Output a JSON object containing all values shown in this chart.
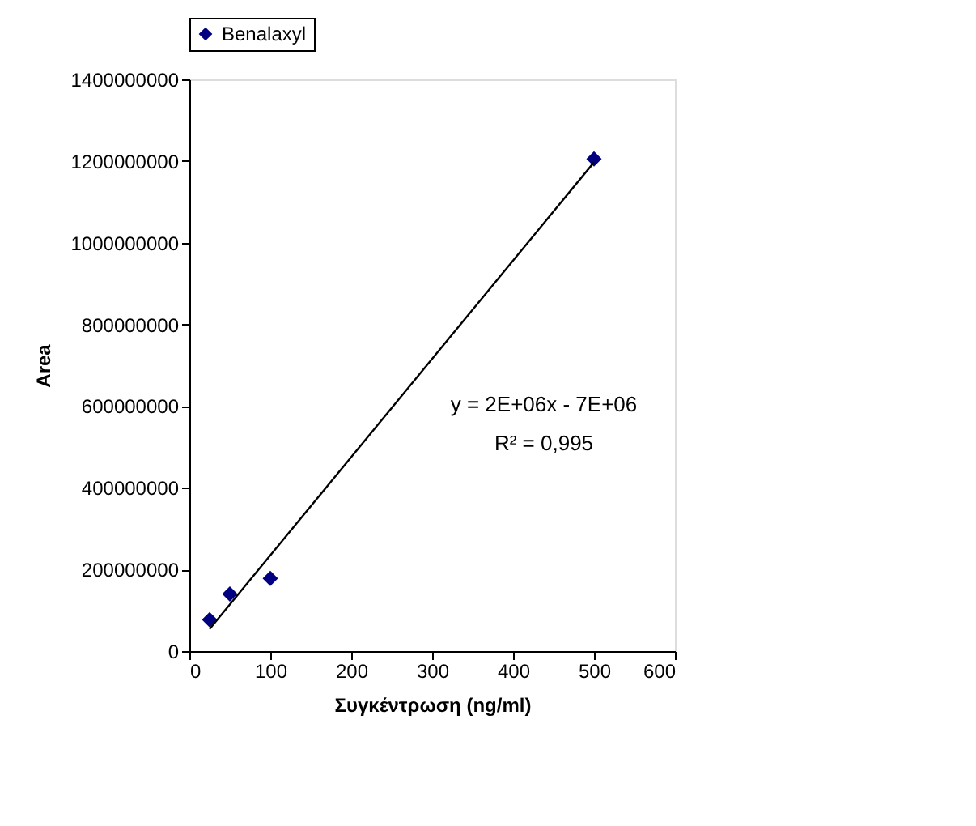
{
  "chart_data": {
    "type": "scatter",
    "xlabel": "Συγκέντρωση (ng/ml)",
    "ylabel": "Area",
    "series": [
      {
        "name": "Benalaxyl",
        "color": "#000080",
        "marker": "diamond",
        "x": [
          25,
          50,
          100,
          500
        ],
        "values": [
          77000000,
          140000000,
          178000000,
          1205000000
        ]
      },
      {
        "type": "line",
        "color": "#000000",
        "marker": "none",
        "line_style": "solid",
        "x": [
          25,
          500
        ],
        "values": [
          54000000,
          1197000000
        ]
      }
    ],
    "annotations": [
      "y = 2E+06x - 7E+06",
      "R² = 0,995"
    ],
    "xlim": [
      0,
      600
    ],
    "xticks": [
      0,
      100,
      200,
      300,
      400,
      500,
      600
    ],
    "ylim": [
      0,
      1400000000
    ],
    "yticks": [
      0,
      200000000,
      400000000,
      600000000,
      800000000,
      1000000000,
      1200000000,
      1400000000
    ],
    "grid": false,
    "legend": "top"
  }
}
